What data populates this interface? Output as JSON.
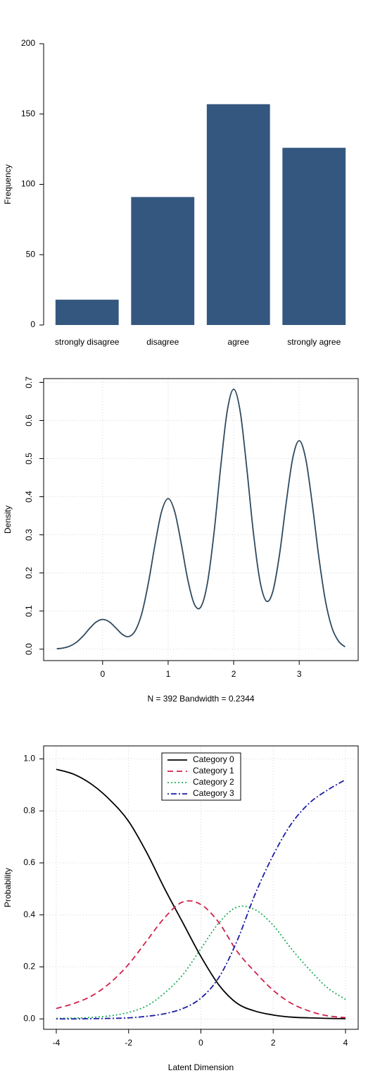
{
  "chart_data": [
    {
      "type": "bar",
      "y_label": "Frequency",
      "categories": [
        "strongly disagree",
        "disagree",
        "agree",
        "strongly agree"
      ],
      "values": [
        18,
        91,
        157,
        126
      ],
      "color": "#34577f",
      "ylim": [
        0,
        200
      ],
      "yticks": [
        0,
        50,
        100,
        150,
        200
      ],
      "grid": false,
      "box": false
    },
    {
      "type": "line",
      "y_label": "Density",
      "x_label": "N = 392   Bandwidth = 0.2344",
      "x": [
        -0.7,
        -0.6,
        -0.5,
        -0.4,
        -0.3,
        -0.2,
        -0.1,
        0,
        0.1,
        0.2,
        0.3,
        0.4,
        0.5,
        0.6,
        0.7,
        0.8,
        0.9,
        1,
        1.1,
        1.2,
        1.3,
        1.4,
        1.5,
        1.6,
        1.7,
        1.8,
        1.9,
        2,
        2.1,
        2.2,
        2.3,
        2.4,
        2.5,
        2.6,
        2.7,
        2.8,
        2.9,
        3,
        3.1,
        3.2,
        3.3,
        3.4,
        3.5,
        3.6,
        3.7
      ],
      "series": [
        {
          "color": "#2f4a5f",
          "dash": "solid",
          "values": [
            0.001,
            0.003,
            0.008,
            0.018,
            0.034,
            0.054,
            0.071,
            0.078,
            0.072,
            0.056,
            0.039,
            0.033,
            0.049,
            0.095,
            0.175,
            0.275,
            0.361,
            0.395,
            0.361,
            0.277,
            0.182,
            0.118,
            0.111,
            0.174,
            0.305,
            0.475,
            0.623,
            0.682,
            0.623,
            0.475,
            0.307,
            0.18,
            0.126,
            0.153,
            0.249,
            0.382,
            0.5,
            0.547,
            0.499,
            0.38,
            0.241,
            0.127,
            0.056,
            0.021,
            0.006
          ]
        }
      ],
      "xlim": [
        -0.9,
        3.9
      ],
      "ylim": [
        -0.03,
        0.71
      ],
      "xticks": [
        0,
        1,
        2,
        3
      ],
      "yticks": [
        {
          "value": 0,
          "label": "0.0"
        },
        0.1,
        0.2,
        0.3,
        0.4,
        0.5,
        0.6,
        0.7
      ],
      "rotate_y_ticks": true,
      "grid": true,
      "box": true
    },
    {
      "type": "line",
      "y_label": "Probability",
      "x_label": "Latent Dimension",
      "x": [
        -4,
        -3.5,
        -3,
        -2.5,
        -2,
        -1.5,
        -1,
        -0.5,
        0,
        0.5,
        1,
        1.5,
        2,
        2.5,
        3,
        3.5,
        4
      ],
      "series": [
        {
          "name": "Category 0",
          "color": "#000000",
          "dash": "solid",
          "values": [
            0.96,
            0.94,
            0.9,
            0.84,
            0.76,
            0.64,
            0.5,
            0.37,
            0.24,
            0.13,
            0.06,
            0.03,
            0.015,
            0.007,
            0.004,
            0.002,
            0.001
          ]
        },
        {
          "name": "Category 1",
          "color": "#d0214a",
          "dash": "dashed",
          "values": [
            0.04,
            0.06,
            0.09,
            0.14,
            0.21,
            0.3,
            0.39,
            0.45,
            0.44,
            0.37,
            0.26,
            0.18,
            0.11,
            0.06,
            0.03,
            0.012,
            0.005
          ]
        },
        {
          "name": "Category 2",
          "color": "#1fb05a",
          "dash": "dotted",
          "values": [
            0.002,
            0.003,
            0.006,
            0.012,
            0.025,
            0.05,
            0.1,
            0.17,
            0.27,
            0.37,
            0.43,
            0.42,
            0.36,
            0.27,
            0.19,
            0.12,
            0.075
          ]
        },
        {
          "name": "Category 3",
          "color": "#1c1ca6",
          "dash": "dotdash",
          "values": [
            0,
            0,
            0.001,
            0.002,
            0.004,
            0.01,
            0.02,
            0.04,
            0.08,
            0.16,
            0.3,
            0.48,
            0.63,
            0.75,
            0.83,
            0.88,
            0.92
          ]
        }
      ],
      "xlim": [
        -4.35,
        4.35
      ],
      "ylim": [
        -0.04,
        1.05
      ],
      "xticks": [
        -4,
        -2,
        0,
        2,
        4
      ],
      "yticks": [
        {
          "value": 0,
          "label": "0.0"
        },
        0.2,
        0.4,
        0.6,
        0.8,
        {
          "value": 1,
          "label": "1.0"
        }
      ],
      "legend": "top",
      "grid": true,
      "box": true
    }
  ]
}
